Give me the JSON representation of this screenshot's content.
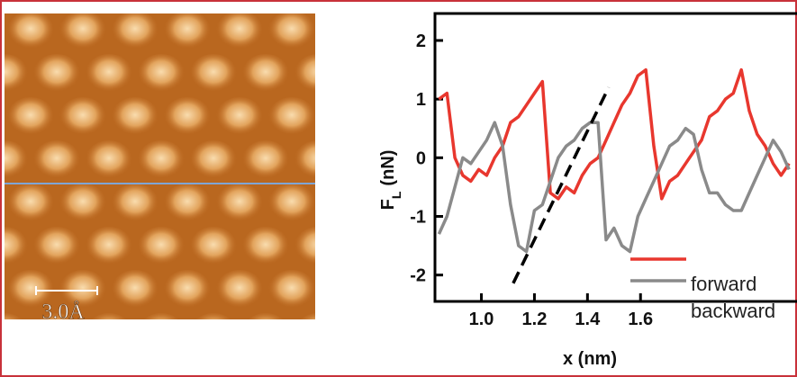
{
  "image": {
    "scale_bar": "3.0Å"
  },
  "chart_data": {
    "type": "line",
    "xlabel": "x (nm)",
    "ylabel": {
      "main": "F",
      "sub": "L",
      "unit": "(nN)"
    },
    "xlim": [
      0.825,
      2.19
    ],
    "ylim": [
      -2.45,
      2.46
    ],
    "xticks": [
      {
        "value": 1,
        "label": "1.0"
      },
      {
        "value": 1.2,
        "label": "1.2"
      },
      {
        "value": 1.4,
        "label": "1.4"
      },
      {
        "value": 1.6,
        "label": "1.6"
      }
    ],
    "yticks": [
      -2,
      -1,
      0,
      1,
      2
    ],
    "x": [
      0.84,
      0.87,
      0.9,
      0.93,
      0.96,
      0.99,
      1.02,
      1.05,
      1.08,
      1.11,
      1.14,
      1.17,
      1.2,
      1.23,
      1.26,
      1.29,
      1.32,
      1.35,
      1.38,
      1.41,
      1.44,
      1.47,
      1.5,
      1.53,
      1.56,
      1.59,
      1.62,
      1.65,
      1.68,
      1.71,
      1.74,
      1.77,
      1.8,
      1.83,
      1.86,
      1.89,
      1.92,
      1.95,
      1.98,
      2.01,
      2.04,
      2.07,
      2.1,
      2.13,
      2.16
    ],
    "series": [
      {
        "name": "forward",
        "color": "#e8372e",
        "values": [
          1.0,
          1.1,
          0.0,
          -0.3,
          -0.4,
          -0.2,
          -0.3,
          0.0,
          0.2,
          0.6,
          0.7,
          0.9,
          1.1,
          1.3,
          -0.6,
          -0.7,
          -0.5,
          -0.6,
          -0.3,
          -0.1,
          0.0,
          0.3,
          0.6,
          0.9,
          1.1,
          1.4,
          1.5,
          0.2,
          -0.7,
          -0.4,
          -0.3,
          -0.1,
          0.1,
          0.3,
          0.7,
          0.8,
          1.0,
          1.1,
          1.5,
          0.8,
          0.4,
          0.2,
          -0.1,
          -0.3,
          -0.1
        ]
      },
      {
        "name": "backward",
        "color": "#8a8a8a",
        "values": [
          -1.3,
          -1.0,
          -0.5,
          0.0,
          -0.1,
          0.1,
          0.3,
          0.6,
          0.2,
          -0.8,
          -1.5,
          -1.6,
          -0.9,
          -0.8,
          -0.4,
          0.0,
          0.2,
          0.3,
          0.5,
          0.6,
          0.6,
          -1.4,
          -1.2,
          -1.5,
          -1.6,
          -1.0,
          -0.7,
          -0.4,
          -0.1,
          0.2,
          0.3,
          0.5,
          0.4,
          -0.2,
          -0.6,
          -0.6,
          -0.8,
          -0.9,
          -0.9,
          -0.6,
          -0.3,
          0.0,
          0.3,
          0.1,
          -0.2
        ]
      }
    ],
    "guide_line": {
      "x": [
        1.12,
        1.48
      ],
      "y": [
        -2.14,
        1.2
      ],
      "color": "#000000"
    }
  }
}
